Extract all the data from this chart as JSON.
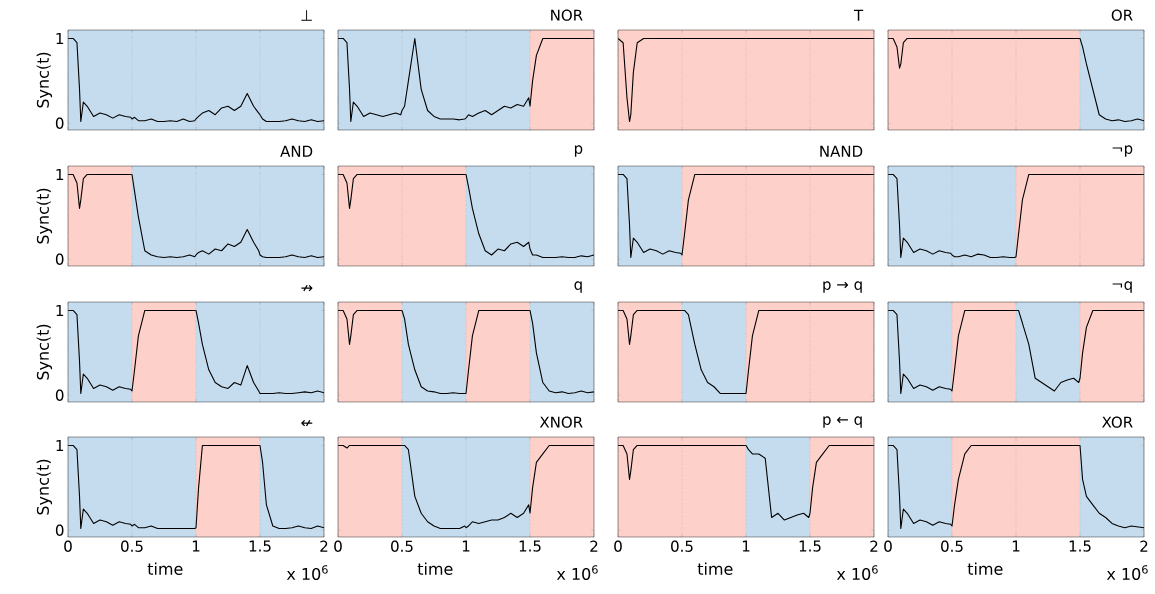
{
  "chart_data": [
    {
      "type": "line",
      "title": "⊥",
      "ylabel": "Sync(t)",
      "tick_labels": "y",
      "grid": "x",
      "xlim": [
        0,
        2
      ],
      "ylim": [
        -0.08,
        1.1
      ],
      "xticks": [
        0,
        0.5,
        1,
        1.5,
        2
      ],
      "yticks": [
        0,
        1
      ],
      "bands": [
        {
          "axis": "x",
          "from": 0,
          "to": 2,
          "color": "#c5dcef"
        }
      ],
      "x": [
        0,
        0.04,
        0.07,
        0.09,
        0.1,
        0.12,
        0.15,
        0.2,
        0.25,
        0.3,
        0.35,
        0.4,
        0.45,
        0.49,
        0.5,
        0.52,
        0.55,
        0.6,
        0.65,
        0.7,
        0.75,
        0.8,
        0.85,
        0.9,
        0.95,
        0.99,
        1.0,
        1.02,
        1.05,
        1.1,
        1.15,
        1.2,
        1.25,
        1.3,
        1.35,
        1.4,
        1.45,
        1.49,
        1.5,
        1.52,
        1.55,
        1.6,
        1.65,
        1.7,
        1.75,
        1.8,
        1.85,
        1.9,
        1.95,
        2.0
      ],
      "series": [
        {
          "color": "#000000",
          "values": [
            1,
            1,
            0.95,
            0.4,
            0.02,
            0.25,
            0.2,
            0.08,
            0.12,
            0.1,
            0.06,
            0.1,
            0.08,
            0.07,
            0.05,
            0.07,
            0.03,
            0.03,
            0.05,
            0.02,
            0.02,
            0.03,
            0.02,
            0.05,
            0.02,
            0.03,
            0.05,
            0.08,
            0.12,
            0.15,
            0.1,
            0.18,
            0.2,
            0.15,
            0.2,
            0.35,
            0.2,
            0.12,
            0.1,
            0.05,
            0.02,
            0.02,
            0.02,
            0.03,
            0.05,
            0.03,
            0.02,
            0.04,
            0.02,
            0.03
          ]
        }
      ]
    },
    {
      "type": "line",
      "title": "NOR",
      "tick_labels": false,
      "grid": "x",
      "xlim": [
        0,
        2
      ],
      "ylim": [
        -0.08,
        1.1
      ],
      "xticks": [
        0,
        0.5,
        1,
        1.5,
        2
      ],
      "yticks": [
        0,
        1
      ],
      "bands": [
        {
          "axis": "x",
          "from": 0,
          "to": 1.5,
          "color": "#c5dcef"
        },
        {
          "axis": "x",
          "from": 1.5,
          "to": 2,
          "color": "#fdd0ca"
        }
      ],
      "x": [
        0,
        0.04,
        0.07,
        0.09,
        0.1,
        0.12,
        0.15,
        0.2,
        0.25,
        0.3,
        0.35,
        0.4,
        0.45,
        0.49,
        0.5,
        0.52,
        0.55,
        0.6,
        0.65,
        0.7,
        0.75,
        0.8,
        0.85,
        0.9,
        0.95,
        0.99,
        1.0,
        1.02,
        1.05,
        1.1,
        1.15,
        1.2,
        1.25,
        1.3,
        1.35,
        1.4,
        1.45,
        1.49,
        1.5,
        1.52,
        1.55,
        1.6,
        1.65,
        1.7,
        1.75,
        1.8,
        1.85,
        1.9,
        1.95,
        2.0
      ],
      "series": [
        {
          "color": "#000000",
          "values": [
            1,
            1,
            0.95,
            0.4,
            0.02,
            0.25,
            0.2,
            0.08,
            0.12,
            0.1,
            0.08,
            0.1,
            0.12,
            0.1,
            0.15,
            0.2,
            0.5,
            1.0,
            0.4,
            0.15,
            0.08,
            0.05,
            0.05,
            0.05,
            0.04,
            0.05,
            0.06,
            0.1,
            0.08,
            0.12,
            0.15,
            0.1,
            0.15,
            0.2,
            0.18,
            0.22,
            0.2,
            0.3,
            0.2,
            0.5,
            0.8,
            1,
            1,
            1,
            1,
            1,
            1,
            1,
            1,
            1
          ]
        }
      ]
    },
    {
      "type": "line",
      "title": "T",
      "tick_labels": false,
      "grid": "x",
      "xlim": [
        0,
        2
      ],
      "ylim": [
        -0.08,
        1.1
      ],
      "xticks": [
        0,
        0.5,
        1,
        1.5,
        2
      ],
      "yticks": [
        0,
        1
      ],
      "bands": [
        {
          "axis": "x",
          "from": 0,
          "to": 2,
          "color": "#fdd0ca"
        }
      ],
      "x": [
        0,
        0.04,
        0.07,
        0.09,
        0.1,
        0.12,
        0.15,
        0.2,
        0.25,
        0.3,
        0.35,
        0.4,
        0.45,
        0.49,
        0.5,
        0.52,
        0.55,
        0.6,
        0.65,
        0.7,
        0.75,
        0.8,
        0.85,
        0.9,
        0.95,
        0.99,
        1.0,
        1.02,
        1.05,
        1.1,
        1.15,
        1.2,
        1.25,
        1.3,
        1.35,
        1.4,
        1.45,
        1.49,
        1.5,
        1.52,
        1.55,
        1.6,
        1.65,
        1.7,
        1.75,
        1.8,
        1.85,
        1.9,
        1.95,
        2.0
      ],
      "series": [
        {
          "color": "#000000",
          "values": [
            1,
            0.95,
            0.3,
            0.02,
            0.1,
            0.6,
            0.95,
            1,
            1,
            1,
            1,
            1,
            1,
            1,
            1,
            1,
            1,
            1,
            1,
            1,
            1,
            1,
            1,
            1,
            1,
            1,
            1,
            1,
            1,
            1,
            1,
            1,
            1,
            1,
            1,
            1,
            1,
            1,
            1,
            1,
            1,
            1,
            1,
            1,
            1,
            1,
            1,
            1,
            1,
            1
          ]
        }
      ]
    },
    {
      "type": "line",
      "title": "OR",
      "tick_labels": false,
      "grid": "x",
      "xlim": [
        0,
        2
      ],
      "ylim": [
        -0.08,
        1.1
      ],
      "xticks": [
        0,
        0.5,
        1,
        1.5,
        2
      ],
      "yticks": [
        0,
        1
      ],
      "bands": [
        {
          "axis": "x",
          "from": 0,
          "to": 1.5,
          "color": "#fdd0ca"
        },
        {
          "axis": "x",
          "from": 1.5,
          "to": 2,
          "color": "#c5dcef"
        }
      ],
      "x": [
        0,
        0.04,
        0.07,
        0.09,
        0.1,
        0.12,
        0.15,
        0.2,
        0.25,
        0.3,
        0.35,
        0.4,
        0.45,
        0.49,
        0.5,
        0.52,
        0.55,
        0.6,
        0.65,
        0.7,
        0.75,
        0.8,
        0.85,
        0.9,
        0.95,
        0.99,
        1.0,
        1.02,
        1.05,
        1.1,
        1.15,
        1.2,
        1.25,
        1.3,
        1.35,
        1.4,
        1.45,
        1.49,
        1.5,
        1.52,
        1.55,
        1.6,
        1.65,
        1.7,
        1.75,
        1.8,
        1.85,
        1.9,
        1.95,
        2.0
      ],
      "series": [
        {
          "color": "#000000",
          "values": [
            1,
            1,
            0.9,
            0.65,
            0.7,
            0.95,
            1,
            1,
            1,
            1,
            1,
            1,
            1,
            1,
            1,
            1,
            1,
            1,
            1,
            1,
            1,
            1,
            1,
            1,
            1,
            1,
            1,
            1,
            1,
            1,
            1,
            1,
            1,
            1,
            1,
            1,
            1,
            1,
            1,
            0.9,
            0.7,
            0.4,
            0.1,
            0.05,
            0.03,
            0.04,
            0.02,
            0.03,
            0.05,
            0.03
          ]
        }
      ]
    },
    {
      "type": "line",
      "title": "AND",
      "ylabel": "Sync(t)",
      "tick_labels": "y",
      "grid": "x",
      "xlim": [
        0,
        2
      ],
      "ylim": [
        -0.08,
        1.1
      ],
      "xticks": [
        0,
        0.5,
        1,
        1.5,
        2
      ],
      "yticks": [
        0,
        1
      ],
      "bands": [
        {
          "axis": "x",
          "from": 0,
          "to": 0.5,
          "color": "#fdd0ca"
        },
        {
          "axis": "x",
          "from": 0.5,
          "to": 2,
          "color": "#c5dcef"
        }
      ],
      "x": [
        0,
        0.04,
        0.07,
        0.09,
        0.1,
        0.12,
        0.15,
        0.2,
        0.25,
        0.3,
        0.35,
        0.4,
        0.45,
        0.49,
        0.5,
        0.52,
        0.55,
        0.6,
        0.65,
        0.7,
        0.75,
        0.8,
        0.85,
        0.9,
        0.95,
        0.99,
        1.0,
        1.02,
        1.05,
        1.1,
        1.15,
        1.2,
        1.25,
        1.3,
        1.35,
        1.4,
        1.45,
        1.49,
        1.5,
        1.52,
        1.55,
        1.6,
        1.65,
        1.7,
        1.75,
        1.8,
        1.85,
        1.9,
        1.95,
        2.0
      ],
      "series": [
        {
          "color": "#000000",
          "values": [
            1,
            1,
            0.9,
            0.6,
            0.7,
            0.95,
            1,
            1,
            1,
            1,
            1,
            1,
            1,
            1,
            1,
            0.8,
            0.5,
            0.1,
            0.05,
            0.03,
            0.02,
            0.03,
            0.02,
            0.03,
            0.05,
            0.03,
            0.05,
            0.08,
            0.1,
            0.06,
            0.12,
            0.1,
            0.18,
            0.15,
            0.2,
            0.35,
            0.2,
            0.1,
            0.05,
            0.03,
            0.02,
            0.02,
            0.02,
            0.03,
            0.05,
            0.03,
            0.02,
            0.04,
            0.02,
            0.03
          ]
        }
      ]
    },
    {
      "type": "line",
      "title": "p",
      "tick_labels": false,
      "grid": "x",
      "xlim": [
        0,
        2
      ],
      "ylim": [
        -0.08,
        1.1
      ],
      "xticks": [
        0,
        0.5,
        1,
        1.5,
        2
      ],
      "yticks": [
        0,
        1
      ],
      "bands": [
        {
          "axis": "x",
          "from": 0,
          "to": 1,
          "color": "#fdd0ca"
        },
        {
          "axis": "x",
          "from": 1,
          "to": 2,
          "color": "#c5dcef"
        }
      ],
      "x": [
        0,
        0.04,
        0.07,
        0.09,
        0.1,
        0.12,
        0.15,
        0.2,
        0.25,
        0.3,
        0.35,
        0.4,
        0.45,
        0.49,
        0.5,
        0.52,
        0.55,
        0.6,
        0.65,
        0.7,
        0.75,
        0.8,
        0.85,
        0.9,
        0.95,
        0.99,
        1.0,
        1.02,
        1.05,
        1.1,
        1.15,
        1.2,
        1.25,
        1.3,
        1.35,
        1.4,
        1.45,
        1.49,
        1.5,
        1.52,
        1.55,
        1.6,
        1.65,
        1.7,
        1.75,
        1.8,
        1.85,
        1.9,
        1.95,
        2.0
      ],
      "series": [
        {
          "color": "#000000",
          "values": [
            1,
            1,
            0.9,
            0.6,
            0.7,
            0.95,
            1,
            1,
            1,
            1,
            1,
            1,
            1,
            1,
            1,
            1,
            1,
            1,
            1,
            1,
            1,
            1,
            1,
            1,
            1,
            1,
            1,
            0.85,
            0.6,
            0.3,
            0.1,
            0.05,
            0.12,
            0.1,
            0.18,
            0.2,
            0.15,
            0.2,
            0.12,
            0.05,
            0.05,
            0.02,
            0.02,
            0.02,
            0.03,
            0.02,
            0.02,
            0.04,
            0.03,
            0.05
          ]
        }
      ]
    },
    {
      "type": "line",
      "title": "NAND",
      "tick_labels": false,
      "grid": "x",
      "xlim": [
        0,
        2
      ],
      "ylim": [
        -0.08,
        1.1
      ],
      "xticks": [
        0,
        0.5,
        1,
        1.5,
        2
      ],
      "yticks": [
        0,
        1
      ],
      "bands": [
        {
          "axis": "x",
          "from": 0,
          "to": 0.5,
          "color": "#c5dcef"
        },
        {
          "axis": "x",
          "from": 0.5,
          "to": 2,
          "color": "#fdd0ca"
        }
      ],
      "x": [
        0,
        0.04,
        0.07,
        0.09,
        0.1,
        0.12,
        0.15,
        0.2,
        0.25,
        0.3,
        0.35,
        0.4,
        0.45,
        0.49,
        0.5,
        0.52,
        0.55,
        0.6,
        0.65,
        0.7,
        0.75,
        0.8,
        0.85,
        0.9,
        0.95,
        0.99,
        1.0,
        1.02,
        1.05,
        1.1,
        1.15,
        1.2,
        1.25,
        1.3,
        1.35,
        1.4,
        1.45,
        1.49,
        1.5,
        1.52,
        1.55,
        1.6,
        1.65,
        1.7,
        1.75,
        1.8,
        1.85,
        1.9,
        1.95,
        2.0
      ],
      "series": [
        {
          "color": "#000000",
          "values": [
            1,
            1,
            0.95,
            0.4,
            0.02,
            0.25,
            0.2,
            0.08,
            0.12,
            0.1,
            0.06,
            0.1,
            0.08,
            0.07,
            0.05,
            0.3,
            0.7,
            1,
            1,
            1,
            1,
            1,
            1,
            1,
            1,
            1,
            1,
            1,
            1,
            1,
            1,
            1,
            1,
            1,
            1,
            1,
            1,
            1,
            1,
            1,
            1,
            1,
            1,
            1,
            1,
            1,
            1,
            1,
            1,
            1
          ]
        }
      ]
    },
    {
      "type": "line",
      "title": "¬p",
      "tick_labels": false,
      "grid": "x",
      "xlim": [
        0,
        2
      ],
      "ylim": [
        -0.08,
        1.1
      ],
      "xticks": [
        0,
        0.5,
        1,
        1.5,
        2
      ],
      "yticks": [
        0,
        1
      ],
      "bands": [
        {
          "axis": "x",
          "from": 0,
          "to": 1,
          "color": "#c5dcef"
        },
        {
          "axis": "x",
          "from": 1,
          "to": 2,
          "color": "#fdd0ca"
        }
      ],
      "x": [
        0,
        0.04,
        0.07,
        0.09,
        0.1,
        0.12,
        0.15,
        0.2,
        0.25,
        0.3,
        0.35,
        0.4,
        0.45,
        0.49,
        0.5,
        0.52,
        0.55,
        0.6,
        0.65,
        0.7,
        0.75,
        0.8,
        0.85,
        0.9,
        0.95,
        0.99,
        1.0,
        1.02,
        1.05,
        1.1,
        1.15,
        1.2,
        1.25,
        1.3,
        1.35,
        1.4,
        1.45,
        1.49,
        1.5,
        1.52,
        1.55,
        1.6,
        1.65,
        1.7,
        1.75,
        1.8,
        1.85,
        1.9,
        1.95,
        2.0
      ],
      "series": [
        {
          "color": "#000000",
          "values": [
            1,
            1,
            0.95,
            0.4,
            0.02,
            0.25,
            0.2,
            0.08,
            0.12,
            0.1,
            0.06,
            0.1,
            0.08,
            0.07,
            0.05,
            0.03,
            0.03,
            0.05,
            0.03,
            0.06,
            0.05,
            0.02,
            0.02,
            0.03,
            0.02,
            0.02,
            0.03,
            0.3,
            0.7,
            1,
            1,
            1,
            1,
            1,
            1,
            1,
            1,
            1,
            1,
            1,
            1,
            1,
            1,
            1,
            1,
            1,
            1,
            1,
            1,
            1
          ]
        }
      ]
    },
    {
      "type": "line",
      "title": "↛",
      "ylabel": "Sync(t)",
      "tick_labels": "y",
      "grid": "x",
      "xlim": [
        0,
        2
      ],
      "ylim": [
        -0.08,
        1.1
      ],
      "xticks": [
        0,
        0.5,
        1,
        1.5,
        2
      ],
      "yticks": [
        0,
        1
      ],
      "bands": [
        {
          "axis": "x",
          "from": 0,
          "to": 0.5,
          "color": "#c5dcef"
        },
        {
          "axis": "x",
          "from": 0.5,
          "to": 1,
          "color": "#fdd0ca"
        },
        {
          "axis": "x",
          "from": 1,
          "to": 2,
          "color": "#c5dcef"
        }
      ],
      "x": [
        0,
        0.04,
        0.07,
        0.09,
        0.1,
        0.12,
        0.15,
        0.2,
        0.25,
        0.3,
        0.35,
        0.4,
        0.45,
        0.49,
        0.5,
        0.52,
        0.55,
        0.6,
        0.65,
        0.7,
        0.75,
        0.8,
        0.85,
        0.9,
        0.95,
        0.99,
        1.0,
        1.02,
        1.05,
        1.1,
        1.15,
        1.2,
        1.25,
        1.3,
        1.35,
        1.4,
        1.45,
        1.49,
        1.5,
        1.52,
        1.55,
        1.6,
        1.65,
        1.7,
        1.75,
        1.8,
        1.85,
        1.9,
        1.95,
        2.0
      ],
      "series": [
        {
          "color": "#000000",
          "values": [
            1,
            1,
            0.95,
            0.4,
            0.02,
            0.25,
            0.2,
            0.08,
            0.12,
            0.1,
            0.06,
            0.1,
            0.08,
            0.07,
            0.05,
            0.3,
            0.7,
            1,
            1,
            1,
            1,
            1,
            1,
            1,
            1,
            1,
            1,
            0.85,
            0.6,
            0.3,
            0.15,
            0.1,
            0.08,
            0.15,
            0.12,
            0.35,
            0.15,
            0.05,
            0.02,
            0.02,
            0.02,
            0.02,
            0.03,
            0.02,
            0.02,
            0.03,
            0.04,
            0.03,
            0.05,
            0.03
          ]
        }
      ]
    },
    {
      "type": "line",
      "title": "q",
      "tick_labels": false,
      "grid": "x",
      "xlim": [
        0,
        2
      ],
      "ylim": [
        -0.08,
        1.1
      ],
      "xticks": [
        0,
        0.5,
        1,
        1.5,
        2
      ],
      "yticks": [
        0,
        1
      ],
      "bands": [
        {
          "axis": "x",
          "from": 0,
          "to": 0.5,
          "color": "#fdd0ca"
        },
        {
          "axis": "x",
          "from": 0.5,
          "to": 1,
          "color": "#c5dcef"
        },
        {
          "axis": "x",
          "from": 1,
          "to": 1.5,
          "color": "#fdd0ca"
        },
        {
          "axis": "x",
          "from": 1.5,
          "to": 2,
          "color": "#c5dcef"
        }
      ],
      "x": [
        0,
        0.04,
        0.07,
        0.09,
        0.1,
        0.12,
        0.15,
        0.2,
        0.25,
        0.3,
        0.35,
        0.4,
        0.45,
        0.49,
        0.5,
        0.52,
        0.55,
        0.6,
        0.65,
        0.7,
        0.75,
        0.8,
        0.85,
        0.9,
        0.95,
        0.99,
        1.0,
        1.02,
        1.05,
        1.1,
        1.15,
        1.2,
        1.25,
        1.3,
        1.35,
        1.4,
        1.45,
        1.49,
        1.5,
        1.52,
        1.55,
        1.6,
        1.65,
        1.7,
        1.75,
        1.8,
        1.85,
        1.9,
        1.95,
        2.0
      ],
      "series": [
        {
          "color": "#000000",
          "values": [
            1,
            1,
            0.9,
            0.6,
            0.7,
            0.95,
            1,
            1,
            1,
            1,
            1,
            1,
            1,
            1,
            1,
            0.9,
            0.6,
            0.3,
            0.1,
            0.05,
            0.04,
            0.02,
            0.02,
            0.03,
            0.02,
            0.02,
            0.02,
            0.3,
            0.7,
            1,
            1,
            1,
            1,
            1,
            1,
            1,
            1,
            1,
            1,
            0.85,
            0.5,
            0.15,
            0.05,
            0.03,
            0.04,
            0.02,
            0.03,
            0.05,
            0.03,
            0.04
          ]
        }
      ]
    },
    {
      "type": "line",
      "title": "p → q",
      "tick_labels": false,
      "grid": "x",
      "xlim": [
        0,
        2
      ],
      "ylim": [
        -0.08,
        1.1
      ],
      "xticks": [
        0,
        0.5,
        1,
        1.5,
        2
      ],
      "yticks": [
        0,
        1
      ],
      "bands": [
        {
          "axis": "x",
          "from": 0,
          "to": 0.5,
          "color": "#fdd0ca"
        },
        {
          "axis": "x",
          "from": 0.5,
          "to": 1,
          "color": "#c5dcef"
        },
        {
          "axis": "x",
          "from": 1,
          "to": 2,
          "color": "#fdd0ca"
        }
      ],
      "x": [
        0,
        0.04,
        0.07,
        0.09,
        0.1,
        0.12,
        0.15,
        0.2,
        0.25,
        0.3,
        0.35,
        0.4,
        0.45,
        0.49,
        0.5,
        0.52,
        0.55,
        0.6,
        0.65,
        0.7,
        0.75,
        0.8,
        0.85,
        0.9,
        0.95,
        0.99,
        1.0,
        1.02,
        1.05,
        1.1,
        1.15,
        1.2,
        1.25,
        1.3,
        1.35,
        1.4,
        1.45,
        1.49,
        1.5,
        1.52,
        1.55,
        1.6,
        1.65,
        1.7,
        1.75,
        1.8,
        1.85,
        1.9,
        1.95,
        2.0
      ],
      "series": [
        {
          "color": "#000000",
          "values": [
            1,
            1,
            0.9,
            0.6,
            0.7,
            0.95,
            1,
            1,
            1,
            1,
            1,
            1,
            1,
            1,
            1,
            1,
            0.95,
            0.6,
            0.3,
            0.15,
            0.1,
            0.02,
            0.02,
            0.02,
            0.02,
            0.02,
            0.02,
            0.3,
            0.7,
            1,
            1,
            1,
            1,
            1,
            1,
            1,
            1,
            1,
            1,
            1,
            1,
            1,
            1,
            1,
            1,
            1,
            1,
            1,
            1,
            1
          ]
        }
      ]
    },
    {
      "type": "line",
      "title": "¬q",
      "tick_labels": false,
      "grid": "x",
      "xlim": [
        0,
        2
      ],
      "ylim": [
        -0.08,
        1.1
      ],
      "xticks": [
        0,
        0.5,
        1,
        1.5,
        2
      ],
      "yticks": [
        0,
        1
      ],
      "bands": [
        {
          "axis": "x",
          "from": 0,
          "to": 0.5,
          "color": "#c5dcef"
        },
        {
          "axis": "x",
          "from": 0.5,
          "to": 1,
          "color": "#fdd0ca"
        },
        {
          "axis": "x",
          "from": 1,
          "to": 1.5,
          "color": "#c5dcef"
        },
        {
          "axis": "x",
          "from": 1.5,
          "to": 2,
          "color": "#fdd0ca"
        }
      ],
      "x": [
        0,
        0.04,
        0.07,
        0.09,
        0.1,
        0.12,
        0.15,
        0.2,
        0.25,
        0.3,
        0.35,
        0.4,
        0.45,
        0.49,
        0.5,
        0.52,
        0.55,
        0.6,
        0.65,
        0.7,
        0.75,
        0.8,
        0.85,
        0.9,
        0.95,
        0.99,
        1.0,
        1.02,
        1.05,
        1.1,
        1.15,
        1.2,
        1.25,
        1.3,
        1.35,
        1.4,
        1.45,
        1.49,
        1.5,
        1.52,
        1.55,
        1.6,
        1.65,
        1.7,
        1.75,
        1.8,
        1.85,
        1.9,
        1.95,
        2.0
      ],
      "series": [
        {
          "color": "#000000",
          "values": [
            1,
            1,
            0.95,
            0.4,
            0.02,
            0.25,
            0.2,
            0.08,
            0.12,
            0.1,
            0.06,
            0.1,
            0.08,
            0.07,
            0.05,
            0.3,
            0.7,
            1,
            1,
            1,
            1,
            1,
            1,
            1,
            1,
            1,
            1,
            1,
            0.85,
            0.6,
            0.2,
            0.15,
            0.1,
            0.05,
            0.15,
            0.18,
            0.2,
            0.15,
            0.2,
            0.5,
            0.8,
            1,
            1,
            1,
            1,
            1,
            1,
            1,
            1,
            1
          ]
        }
      ]
    },
    {
      "type": "line",
      "title": "↚",
      "ylabel": "Sync(t)",
      "xlabel": "time",
      "annotations": [
        "x 10$^{6}$"
      ],
      "grid": "x",
      "xlim": [
        0,
        2
      ],
      "ylim": [
        -0.08,
        1.1
      ],
      "xticks": [
        0,
        0.5,
        1,
        1.5,
        2
      ],
      "yticks": [
        0,
        1
      ],
      "bands": [
        {
          "axis": "x",
          "from": 0,
          "to": 1,
          "color": "#c5dcef"
        },
        {
          "axis": "x",
          "from": 1,
          "to": 1.5,
          "color": "#fdd0ca"
        },
        {
          "axis": "x",
          "from": 1.5,
          "to": 2,
          "color": "#c5dcef"
        }
      ],
      "x": [
        0,
        0.04,
        0.07,
        0.09,
        0.1,
        0.12,
        0.15,
        0.2,
        0.25,
        0.3,
        0.35,
        0.4,
        0.45,
        0.49,
        0.5,
        0.52,
        0.55,
        0.6,
        0.65,
        0.7,
        0.75,
        0.8,
        0.85,
        0.9,
        0.95,
        0.99,
        1.0,
        1.02,
        1.05,
        1.1,
        1.15,
        1.2,
        1.25,
        1.3,
        1.35,
        1.4,
        1.45,
        1.49,
        1.5,
        1.52,
        1.55,
        1.6,
        1.65,
        1.7,
        1.75,
        1.8,
        1.85,
        1.9,
        1.95,
        2.0
      ],
      "series": [
        {
          "color": "#000000",
          "values": [
            1,
            1,
            0.95,
            0.4,
            0.02,
            0.25,
            0.2,
            0.08,
            0.12,
            0.1,
            0.06,
            0.1,
            0.08,
            0.07,
            0.05,
            0.07,
            0.03,
            0.03,
            0.05,
            0.02,
            0.02,
            0.02,
            0.02,
            0.02,
            0.02,
            0.02,
            0.03,
            0.5,
            1,
            1,
            1,
            1,
            1,
            1,
            1,
            1,
            1,
            1,
            1,
            0.8,
            0.3,
            0.05,
            0.02,
            0.02,
            0.03,
            0.05,
            0.03,
            0.02,
            0.05,
            0.03
          ]
        }
      ]
    },
    {
      "type": "line",
      "title": "XNOR",
      "xlabel": "time",
      "annotations": [
        "x 10$^{6}$"
      ],
      "tick_labels": "x",
      "grid": "x",
      "xlim": [
        0,
        2
      ],
      "ylim": [
        -0.08,
        1.1
      ],
      "xticks": [
        0,
        0.5,
        1,
        1.5,
        2
      ],
      "yticks": [
        0,
        1
      ],
      "bands": [
        {
          "axis": "x",
          "from": 0,
          "to": 0.5,
          "color": "#fdd0ca"
        },
        {
          "axis": "x",
          "from": 0.5,
          "to": 1.5,
          "color": "#c5dcef"
        },
        {
          "axis": "x",
          "from": 1.5,
          "to": 2,
          "color": "#fdd0ca"
        }
      ],
      "x": [
        0,
        0.04,
        0.07,
        0.09,
        0.1,
        0.12,
        0.15,
        0.2,
        0.25,
        0.3,
        0.35,
        0.4,
        0.45,
        0.49,
        0.5,
        0.52,
        0.55,
        0.6,
        0.65,
        0.7,
        0.75,
        0.8,
        0.85,
        0.9,
        0.95,
        0.99,
        1.0,
        1.02,
        1.05,
        1.1,
        1.15,
        1.2,
        1.25,
        1.3,
        1.35,
        1.4,
        1.45,
        1.49,
        1.5,
        1.52,
        1.55,
        1.6,
        1.65,
        1.7,
        1.75,
        1.8,
        1.85,
        1.9,
        1.95,
        2.0
      ],
      "series": [
        {
          "color": "#000000",
          "values": [
            1,
            1,
            0.97,
            1,
            1,
            1,
            1,
            1,
            1,
            1,
            1,
            1,
            1,
            1,
            1,
            1,
            0.95,
            0.4,
            0.2,
            0.1,
            0.05,
            0.02,
            0.02,
            0.02,
            0.02,
            0.05,
            0.03,
            0.05,
            0.1,
            0.08,
            0.1,
            0.12,
            0.12,
            0.15,
            0.2,
            0.15,
            0.2,
            0.3,
            0.2,
            0.5,
            0.8,
            0.9,
            1,
            1,
            1,
            1,
            1,
            1,
            1,
            1
          ]
        }
      ]
    },
    {
      "type": "line",
      "title": "p ← q",
      "xlabel": "time",
      "annotations": [
        "x 10$^{6}$"
      ],
      "tick_labels": "x",
      "grid": "x",
      "xlim": [
        0,
        2
      ],
      "ylim": [
        -0.08,
        1.1
      ],
      "xticks": [
        0,
        0.5,
        1,
        1.5,
        2
      ],
      "yticks": [
        0,
        1
      ],
      "bands": [
        {
          "axis": "x",
          "from": 0,
          "to": 1,
          "color": "#fdd0ca"
        },
        {
          "axis": "x",
          "from": 1,
          "to": 1.5,
          "color": "#c5dcef"
        },
        {
          "axis": "x",
          "from": 1.5,
          "to": 2,
          "color": "#fdd0ca"
        }
      ],
      "x": [
        0,
        0.04,
        0.07,
        0.09,
        0.1,
        0.12,
        0.15,
        0.2,
        0.25,
        0.3,
        0.35,
        0.4,
        0.45,
        0.49,
        0.5,
        0.52,
        0.55,
        0.6,
        0.65,
        0.7,
        0.75,
        0.8,
        0.85,
        0.9,
        0.95,
        0.99,
        1.0,
        1.02,
        1.05,
        1.1,
        1.15,
        1.2,
        1.25,
        1.3,
        1.35,
        1.4,
        1.45,
        1.49,
        1.5,
        1.52,
        1.55,
        1.6,
        1.65,
        1.7,
        1.75,
        1.8,
        1.85,
        1.9,
        1.95,
        2.0
      ],
      "series": [
        {
          "color": "#000000",
          "values": [
            1,
            1,
            0.9,
            0.6,
            0.7,
            0.95,
            1,
            1,
            1,
            1,
            1,
            1,
            1,
            1,
            1,
            1,
            1,
            1,
            1,
            1,
            1,
            1,
            1,
            1,
            1,
            1,
            1,
            0.95,
            0.9,
            0.9,
            0.85,
            0.15,
            0.2,
            0.12,
            0.15,
            0.18,
            0.2,
            0.15,
            0.2,
            0.5,
            0.8,
            0.9,
            1,
            1,
            1,
            1,
            1,
            1,
            1,
            1
          ]
        }
      ]
    },
    {
      "type": "line",
      "title": "XOR",
      "xlabel": "time",
      "annotations": [
        "x 10$^{6}$"
      ],
      "tick_labels": "x",
      "grid": "x",
      "xlim": [
        0,
        2
      ],
      "ylim": [
        -0.08,
        1.1
      ],
      "xticks": [
        0,
        0.5,
        1,
        1.5,
        2
      ],
      "yticks": [
        0,
        1
      ],
      "bands": [
        {
          "axis": "x",
          "from": 0,
          "to": 0.5,
          "color": "#c5dcef"
        },
        {
          "axis": "x",
          "from": 0.5,
          "to": 1.5,
          "color": "#fdd0ca"
        },
        {
          "axis": "x",
          "from": 1.5,
          "to": 2,
          "color": "#c5dcef"
        }
      ],
      "x": [
        0,
        0.04,
        0.07,
        0.09,
        0.1,
        0.12,
        0.15,
        0.2,
        0.25,
        0.3,
        0.35,
        0.4,
        0.45,
        0.49,
        0.5,
        0.52,
        0.55,
        0.6,
        0.65,
        0.7,
        0.75,
        0.8,
        0.85,
        0.9,
        0.95,
        0.99,
        1.0,
        1.02,
        1.05,
        1.1,
        1.15,
        1.2,
        1.25,
        1.3,
        1.35,
        1.4,
        1.45,
        1.49,
        1.5,
        1.52,
        1.55,
        1.6,
        1.65,
        1.7,
        1.75,
        1.8,
        1.85,
        1.9,
        1.95,
        2.0
      ],
      "series": [
        {
          "color": "#000000",
          "values": [
            1,
            1,
            0.95,
            0.4,
            0.02,
            0.25,
            0.2,
            0.08,
            0.12,
            0.1,
            0.06,
            0.1,
            0.08,
            0.07,
            0.05,
            0.3,
            0.6,
            0.9,
            1,
            1,
            1,
            1,
            1,
            1,
            1,
            1,
            1,
            1,
            1,
            1,
            1,
            1,
            1,
            1,
            1,
            1,
            1,
            1,
            1,
            0.6,
            0.4,
            0.3,
            0.2,
            0.15,
            0.08,
            0.05,
            0.03,
            0.05,
            0.04,
            0.03
          ]
        }
      ]
    }
  ]
}
